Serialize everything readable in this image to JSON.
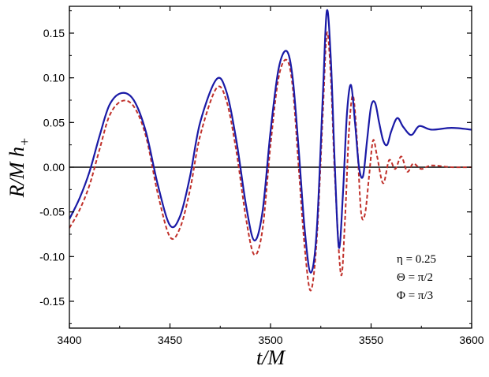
{
  "chart_data": {
    "type": "line",
    "xlabel": "t/M",
    "ylabel": "R/M h",
    "ylabel_sub": "+",
    "xlim": [
      3400,
      3600
    ],
    "ylim": [
      -0.18,
      0.18
    ],
    "xticks": [
      3400,
      3450,
      3500,
      3550,
      3600
    ],
    "xtick_labels": [
      "3400",
      "3450",
      "3500",
      "3550",
      "3600"
    ],
    "yticks": [
      -0.15,
      -0.1,
      -0.05,
      0.0,
      0.05,
      0.1,
      0.15
    ],
    "ytick_labels": [
      "-0.15",
      "-0.10",
      "-0.05",
      "0.00",
      "0.05",
      "0.10",
      "0.15"
    ],
    "zero_line": true,
    "grid": false,
    "annotations": [
      "η = 0.25",
      "Θ = π/2",
      "Φ = π/3"
    ],
    "series": [
      {
        "style": "solid",
        "color": "#1a1aa6",
        "x": [
          3400,
          3405,
          3410,
          3415,
          3420,
          3426,
          3432,
          3438,
          3444,
          3450,
          3455,
          3460,
          3465,
          3473,
          3478,
          3483,
          3488,
          3492,
          3496,
          3500,
          3504,
          3508,
          3511,
          3514,
          3517,
          3520,
          3523,
          3526,
          3528,
          3530,
          3532,
          3534,
          3536,
          3538,
          3540,
          3542,
          3544,
          3546,
          3548,
          3550,
          3552,
          3554,
          3556,
          3558,
          3560,
          3563,
          3566,
          3570,
          3574,
          3580,
          3590,
          3600
        ],
        "y": [
          -0.058,
          -0.035,
          -0.005,
          0.035,
          0.07,
          0.083,
          0.075,
          0.04,
          -0.02,
          -0.065,
          -0.055,
          -0.01,
          0.05,
          0.098,
          0.085,
          0.03,
          -0.045,
          -0.082,
          -0.05,
          0.04,
          0.11,
          0.13,
          0.1,
          0.02,
          -0.07,
          -0.118,
          -0.07,
          0.08,
          0.175,
          0.12,
          0.0,
          -0.09,
          -0.03,
          0.06,
          0.092,
          0.05,
          0.0,
          -0.01,
          0.03,
          0.068,
          0.072,
          0.05,
          0.03,
          0.025,
          0.04,
          0.055,
          0.045,
          0.036,
          0.046,
          0.042,
          0.044,
          0.042
        ]
      },
      {
        "style": "dashed",
        "color": "#c0302a",
        "x": [
          3400,
          3405,
          3410,
          3415,
          3420,
          3426,
          3432,
          3438,
          3444,
          3450,
          3455,
          3460,
          3465,
          3473,
          3478,
          3483,
          3488,
          3492,
          3496,
          3500,
          3504,
          3508,
          3511,
          3514,
          3517,
          3520,
          3523,
          3526,
          3528,
          3530,
          3532,
          3535,
          3537,
          3539,
          3541,
          3543,
          3545,
          3547,
          3549,
          3551,
          3553,
          3556,
          3559,
          3562,
          3565,
          3568,
          3571,
          3575,
          3580,
          3590,
          3600
        ],
        "y": [
          -0.068,
          -0.048,
          -0.02,
          0.02,
          0.058,
          0.074,
          0.068,
          0.035,
          -0.03,
          -0.078,
          -0.068,
          -0.025,
          0.035,
          0.088,
          0.075,
          0.018,
          -0.06,
          -0.098,
          -0.07,
          0.025,
          0.1,
          0.12,
          0.09,
          0.0,
          -0.09,
          -0.138,
          -0.08,
          0.06,
          0.15,
          0.1,
          -0.01,
          -0.12,
          -0.06,
          0.04,
          0.08,
          0.03,
          -0.05,
          -0.052,
          -0.01,
          0.03,
          0.012,
          -0.018,
          0.008,
          -0.002,
          0.012,
          -0.005,
          0.004,
          -0.002,
          0.002,
          0.0,
          0.0
        ]
      }
    ]
  }
}
